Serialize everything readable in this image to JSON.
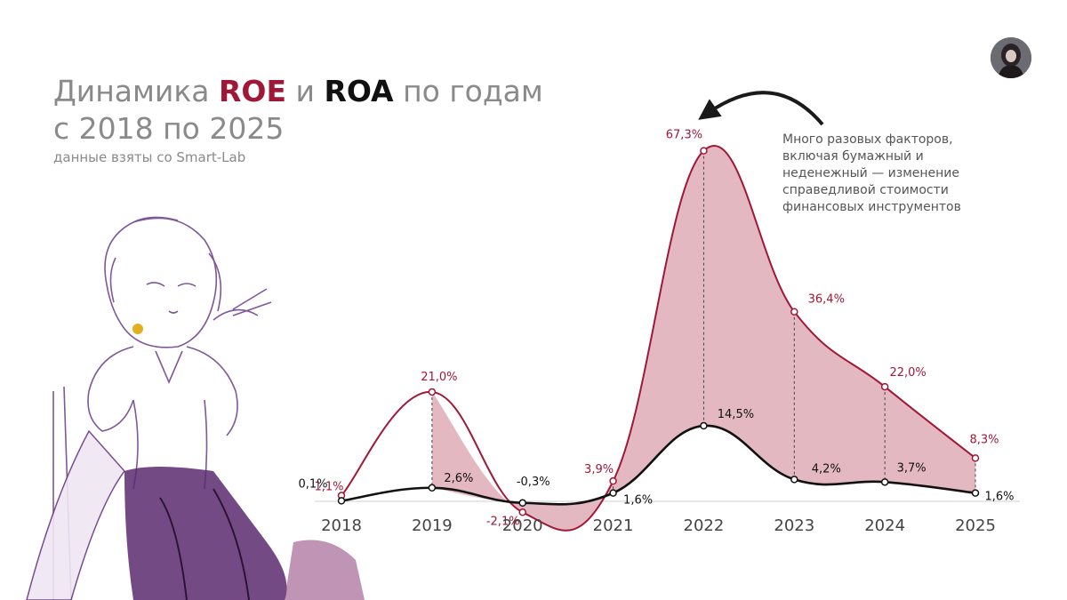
{
  "header": {
    "title_prefix": "Динамика ",
    "title_roe": "ROE",
    "title_and": " и ",
    "title_roa": "ROA",
    "title_suffix": " по годам",
    "title_line2": "с 2018 по 2025",
    "subtitle": "данные взяты со Smart-Lab"
  },
  "annotation": {
    "text": "Много разовых факторов, включая бумажный и неденежный — изменение справедливой стоимости финансовых инструментов",
    "points_to": "2022"
  },
  "colors": {
    "roe": "#a01838",
    "roa": "#111111",
    "fill": "#e3b4be",
    "title": "#8a8a8a"
  },
  "chart_data": {
    "type": "line",
    "title": "Динамика ROE и ROA по годам с 2018 по 2025",
    "categories": [
      "2018",
      "2019",
      "2020",
      "2021",
      "2022",
      "2023",
      "2024",
      "2025"
    ],
    "series": [
      {
        "name": "ROE",
        "values": [
          1.1,
          21.0,
          -2.1,
          3.9,
          67.3,
          36.4,
          22.0,
          8.3
        ],
        "labels": [
          "1,1%",
          "21,0%",
          "-2,1%",
          "3,9%",
          "67,3%",
          "36,4%",
          "22,0%",
          "8,3%"
        ]
      },
      {
        "name": "ROA",
        "values": [
          0.1,
          2.6,
          -0.3,
          1.6,
          14.5,
          4.2,
          3.7,
          1.6
        ],
        "labels": [
          "0,1%",
          "2,6%",
          "-0,3%",
          "1,6%",
          "14,5%",
          "4,2%",
          "3,7%",
          "1,6%"
        ]
      }
    ],
    "unit": "%",
    "fill_between": true,
    "grid": false,
    "legend": "in title"
  }
}
